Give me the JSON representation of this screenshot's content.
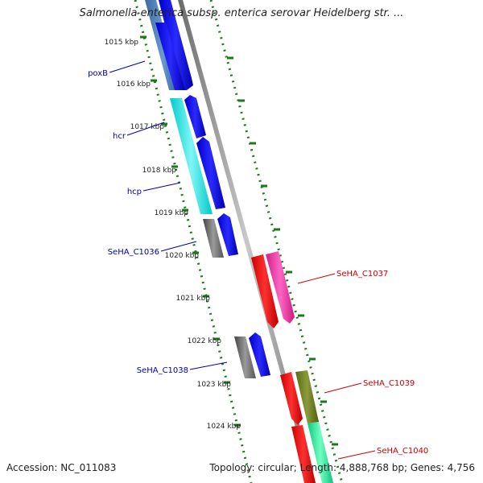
{
  "title": "Salmonella enterica subsp. enterica serovar Heidelberg str. ...",
  "accession": "Accession: NC_011083",
  "topology": "Topology: circular; Length: 4,888,768 bp; Genes: 4,756",
  "kbp_labels": [
    "1015 kbp",
    "1016 kbp",
    "1017 kbp",
    "1018 kbp",
    "1019 kbp",
    "1020 kbp",
    "1021 kbp",
    "1022 kbp",
    "1023 kbp",
    "1024 kbp"
  ],
  "genes_left": [
    {
      "name": "poxB"
    },
    {
      "name": "hcr"
    },
    {
      "name": "hcp"
    },
    {
      "name": "SeHA_C1036"
    },
    {
      "name": "SeHA_C1038"
    }
  ],
  "genes_right": [
    {
      "name": "SeHA_C1037"
    },
    {
      "name": "SeHA_C1039"
    },
    {
      "name": "SeHA_C1040"
    }
  ],
  "colors": {
    "label_left": "#0000aa",
    "label_right": "#cc0000",
    "tick": "#1a7a1a",
    "backbone": "#8a8a8a"
  }
}
